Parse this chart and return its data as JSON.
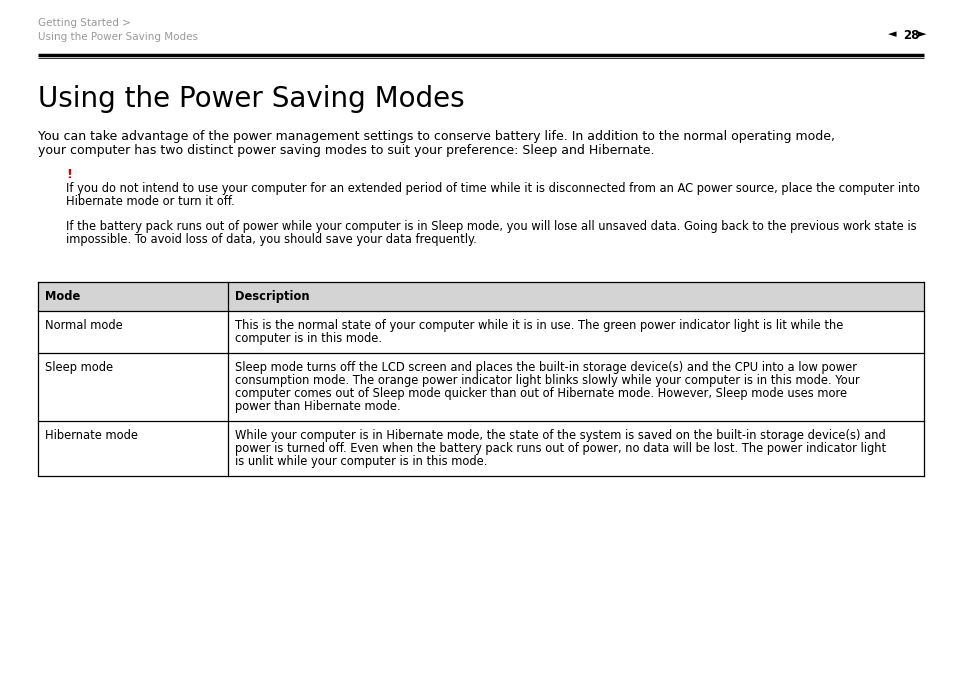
{
  "bg_color": "#ffffff",
  "page_width": 9.54,
  "page_height": 6.74,
  "dpi": 100,
  "header_breadcrumb_line1": "Getting Started >",
  "header_breadcrumb_line2": "Using the Power Saving Modes",
  "header_breadcrumb_color": "#999999",
  "page_number": "28",
  "header_line_color": "#000000",
  "title": "Using the Power Saving Modes",
  "title_fontsize": 20,
  "intro_text_line1": "You can take advantage of the power management settings to conserve battery life. In addition to the normal operating mode,",
  "intro_text_line2": "your computer has two distinct power saving modes to suit your preference: Sleep and Hibernate.",
  "body_fontsize": 9.0,
  "warning_exclamation": "!",
  "warning_exclamation_color": "#cc0000",
  "warning_text1_line1": "If you do not intend to use your computer for an extended period of time while it is disconnected from an AC power source, place the computer into",
  "warning_text1_line2": "Hibernate mode or turn it off.",
  "warning_text2_line1": "If the battery pack runs out of power while your computer is in Sleep mode, you will lose all unsaved data. Going back to the previous work state is",
  "warning_text2_line2": "impossible. To avoid loss of data, you should save your data frequently.",
  "warning_fontsize": 8.3,
  "table_header_bg": "#d4d4d4",
  "table_border_color": "#000000",
  "table_header_mode": "Mode",
  "table_header_desc": "Description",
  "table_rows": [
    {
      "mode": "Normal mode",
      "desc_lines": [
        "This is the normal state of your computer while it is in use. The green power indicator light is lit while the",
        "computer is in this mode."
      ]
    },
    {
      "mode": "Sleep mode",
      "desc_lines": [
        "Sleep mode turns off the LCD screen and places the built-in storage device(s) and the CPU into a low power",
        "consumption mode. The orange power indicator light blinks slowly while your computer is in this mode. Your",
        "computer comes out of Sleep mode quicker than out of Hibernate mode. However, Sleep mode uses more",
        "power than Hibernate mode."
      ]
    },
    {
      "mode": "Hibernate mode",
      "desc_lines": [
        "While your computer is in Hibernate mode, the state of the system is saved on the built-in storage device(s) and",
        "power is turned off. Even when the battery pack runs out of power, no data will be lost. The power indicator light",
        "is unlit while your computer is in this mode."
      ]
    }
  ],
  "table_fontsize": 8.3
}
